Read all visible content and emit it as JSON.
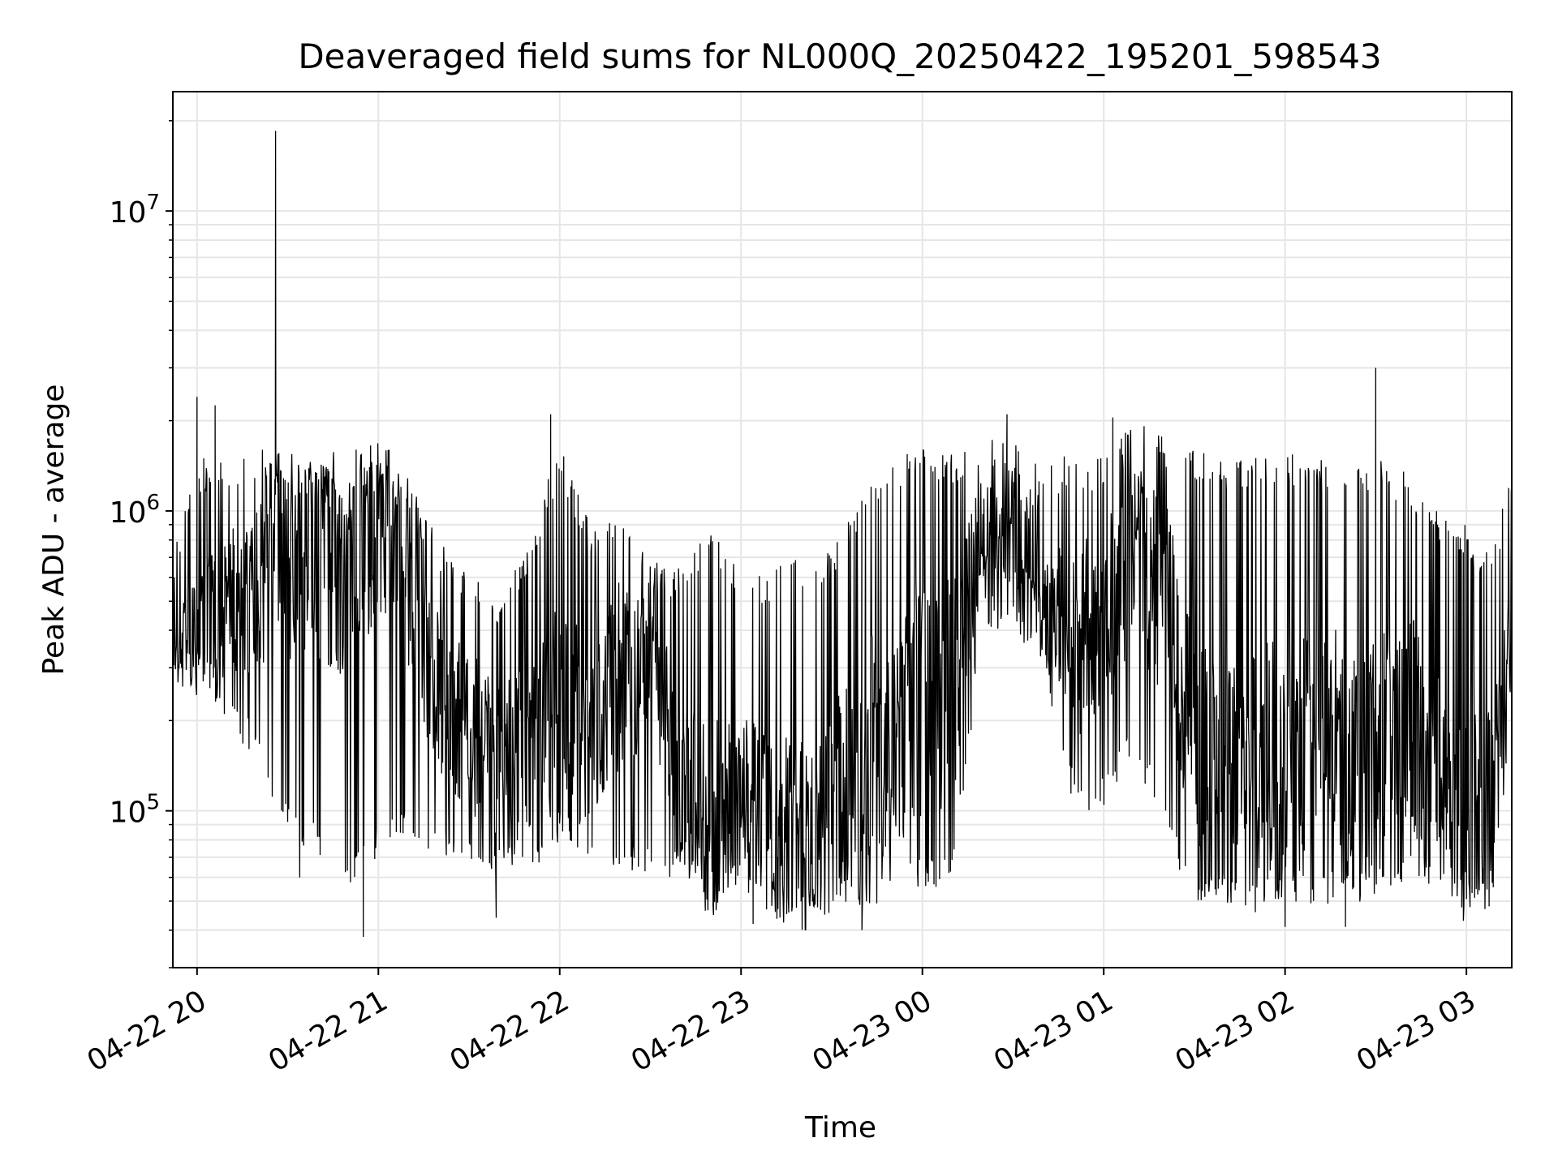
{
  "chart_data": {
    "type": "line",
    "title": "Deaveraged field sums for NL000Q_20250422_195201_598543",
    "xlabel": "Time",
    "ylabel": "Peak ADU - average",
    "yscale": "log",
    "grid": true,
    "ylim": [
      30000,
      25000000
    ],
    "xlim": [
      "2025-04-22 19:52",
      "2025-04-23 03:15"
    ],
    "x_ticks": [
      {
        "t": "2025-04-22 20:00",
        "label": "04-22 20"
      },
      {
        "t": "2025-04-22 21:00",
        "label": "04-22 21"
      },
      {
        "t": "2025-04-22 22:00",
        "label": "04-22 22"
      },
      {
        "t": "2025-04-22 23:00",
        "label": "04-22 23"
      },
      {
        "t": "2025-04-23 00:00",
        "label": "04-23 00"
      },
      {
        "t": "2025-04-23 01:00",
        "label": "04-23 01"
      },
      {
        "t": "2025-04-23 02:00",
        "label": "04-23 02"
      },
      {
        "t": "2025-04-23 03:00",
        "label": "04-23 03"
      }
    ],
    "y_ticks": [
      {
        "value": 100000,
        "base": "10",
        "exp": "5"
      },
      {
        "value": 1000000,
        "base": "10",
        "exp": "6"
      },
      {
        "value": 10000000,
        "base": "10",
        "exp": "7"
      }
    ],
    "series": [
      {
        "color": "#000000",
        "x": [
          "2025-04-22 19:52",
          "2025-04-22 20:00",
          "2025-04-22 20:10",
          "2025-04-22 20:20",
          "2025-04-22 20:26",
          "2025-04-22 20:30",
          "2025-04-22 20:40",
          "2025-04-22 20:50",
          "2025-04-22 21:00",
          "2025-04-22 21:10",
          "2025-04-22 21:20",
          "2025-04-22 21:30",
          "2025-04-22 21:40",
          "2025-04-22 21:50",
          "2025-04-22 22:00",
          "2025-04-22 22:10",
          "2025-04-22 22:20",
          "2025-04-22 22:30",
          "2025-04-22 22:40",
          "2025-04-22 22:50",
          "2025-04-22 23:00",
          "2025-04-22 23:10",
          "2025-04-22 23:20",
          "2025-04-22 23:30",
          "2025-04-22 23:40",
          "2025-04-22 23:50",
          "2025-04-23 00:00",
          "2025-04-23 00:10",
          "2025-04-23 00:20",
          "2025-04-23 00:30",
          "2025-04-23 00:40",
          "2025-04-23 00:50",
          "2025-04-23 01:00",
          "2025-04-23 01:10",
          "2025-04-23 01:20",
          "2025-04-23 01:30",
          "2025-04-23 01:40",
          "2025-04-23 01:50",
          "2025-04-23 02:00",
          "2025-04-23 02:10",
          "2025-04-23 02:20",
          "2025-04-23 02:30",
          "2025-04-23 02:40",
          "2025-04-23 02:50",
          "2025-04-23 03:00",
          "2025-04-23 03:08",
          "2025-04-23 03:15"
        ],
        "median": [
          350000,
          380000,
          500000,
          550000,
          800000,
          700000,
          650000,
          700000,
          900000,
          600000,
          250000,
          180000,
          150000,
          160000,
          250000,
          180000,
          280000,
          350000,
          120000,
          90000,
          110000,
          90000,
          80000,
          100000,
          150000,
          180000,
          250000,
          250000,
          900000,
          850000,
          650000,
          350000,
          450000,
          700000,
          500000,
          150000,
          140000,
          130000,
          160000,
          170000,
          150000,
          160000,
          200000,
          140000,
          100000,
          100000,
          350000
        ],
        "low": [
          300000,
          250000,
          200000,
          140000,
          100000,
          80000,
          70000,
          50000,
          70000,
          80000,
          70000,
          60000,
          60000,
          60000,
          80000,
          70000,
          60000,
          60000,
          60000,
          50000,
          55000,
          45000,
          45000,
          45000,
          45000,
          50000,
          55000,
          55000,
          400000,
          400000,
          300000,
          100000,
          100000,
          150000,
          80000,
          50000,
          48000,
          45000,
          50000,
          48000,
          48000,
          50000,
          55000,
          50000,
          45000,
          45000,
          200000
        ],
        "high": [
          700000,
          1500000,
          1500000,
          1600000,
          1600000,
          1500000,
          1400000,
          1400000,
          1500000,
          1300000,
          800000,
          600000,
          550000,
          800000,
          1700000,
          900000,
          1000000,
          700000,
          650000,
          900000,
          650000,
          650000,
          700000,
          750000,
          1200000,
          1500000,
          1700000,
          1600000,
          1800000,
          1700000,
          1400000,
          1600000,
          1500000,
          2000000,
          1800000,
          1600000,
          1500000,
          1500000,
          1600000,
          1500000,
          1500000,
          1500000,
          1400000,
          1000000,
          900000,
          700000,
          1500000
        ],
        "peaks": [
          {
            "t": "2025-04-22 20:00",
            "value": 2400000
          },
          {
            "t": "2025-04-22 20:06",
            "value": 2250000
          },
          {
            "t": "2025-04-22 20:26",
            "value": 18500000
          },
          {
            "t": "2025-04-22 21:57",
            "value": 2100000
          },
          {
            "t": "2025-04-23 00:28",
            "value": 2100000
          },
          {
            "t": "2025-04-23 01:03",
            "value": 2050000
          },
          {
            "t": "2025-04-23 02:30",
            "value": 3000000
          }
        ],
        "dips": [
          {
            "t": "2025-04-22 20:34",
            "value": 60000
          },
          {
            "t": "2025-04-22 20:55",
            "value": 38000
          },
          {
            "t": "2025-04-22 21:39",
            "value": 44000
          },
          {
            "t": "2025-04-22 23:04",
            "value": 42000
          },
          {
            "t": "2025-04-22 23:40",
            "value": 40000
          },
          {
            "t": "2025-04-23 02:00",
            "value": 41000
          },
          {
            "t": "2025-04-23 02:20",
            "value": 41000
          },
          {
            "t": "2025-04-23 02:59",
            "value": 43000
          }
        ]
      }
    ]
  }
}
